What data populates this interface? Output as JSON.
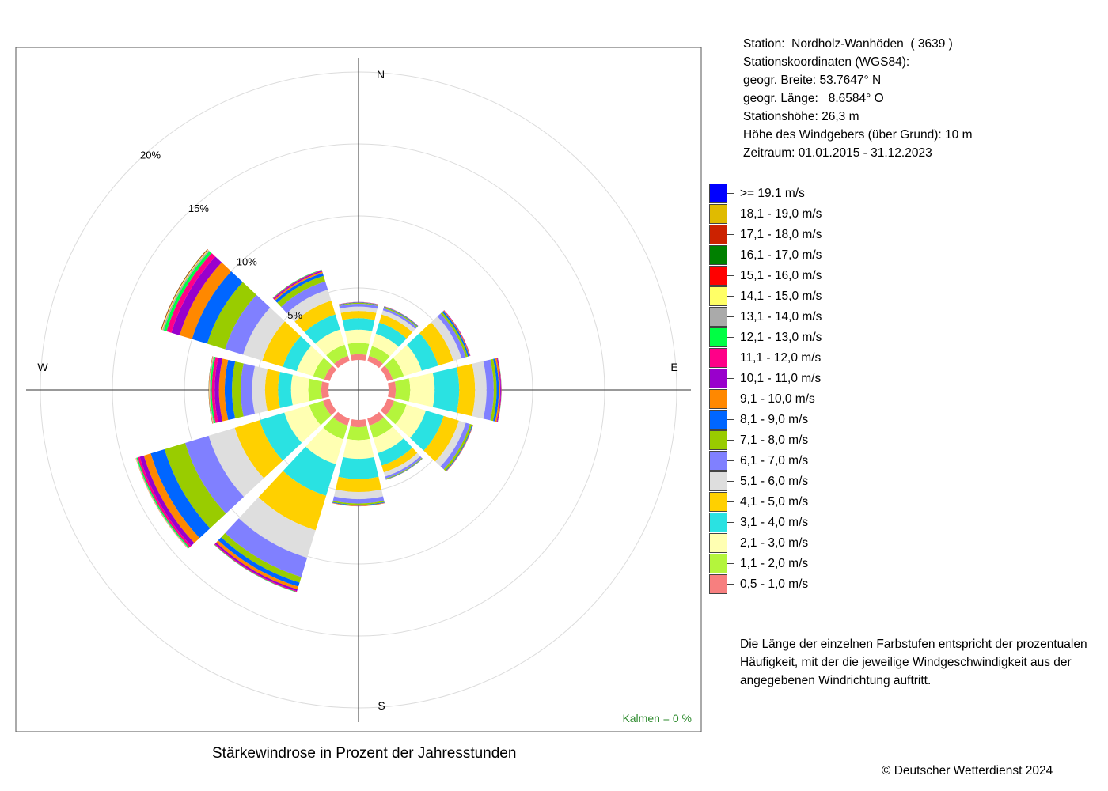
{
  "station": {
    "line1": "Station:  Nordholz-Wanhöden  ( 3639 )",
    "line2": "Stationskoordinaten (WGS84):",
    "line3": "geogr. Breite: 53.7647° N",
    "line4": "geogr. Länge:   8.6584° O",
    "line5": "Stationshöhe: 26,3 m",
    "line6": "Höhe des Windgebers (über Grund): 10 m",
    "line7": "Zeitraum: 01.01.2015 - 31.12.2023"
  },
  "note": "Die Länge der einzelnen Farbstufen entspricht der prozentualen Häufigkeit, mit der die jeweilige Windgeschwindigkeit aus der angegebenen Windrichtung auftritt.",
  "footer": {
    "title": "Stärkewindrose in Prozent der Jahresstunden",
    "copyright": "© Deutscher Wetterdienst  2024"
  },
  "chart_data": {
    "type": "windrose",
    "compass_labels": [
      "N",
      "E",
      "S",
      "W"
    ],
    "ring_labels": [
      "5%",
      "10%",
      "15%",
      "20%"
    ],
    "ring_values": [
      5,
      10,
      15,
      20
    ],
    "calm": "Kalmen  =  0 %",
    "directions_deg": [
      0,
      30,
      60,
      90,
      120,
      150,
      180,
      210,
      240,
      270,
      300,
      330
    ],
    "classes": [
      {
        "label": "0,5 - 1,0 m/s",
        "color": "#F77F7F"
      },
      {
        "label": "1,1 - 2,0 m/s",
        "color": "#B4F53C"
      },
      {
        "label": "2,1 - 3,0 m/s",
        "color": "#FFFFB2"
      },
      {
        "label": "3,1 - 4,0 m/s",
        "color": "#2AE2E2"
      },
      {
        "label": "4,1 - 5,0 m/s",
        "color": "#FFD000"
      },
      {
        "label": "5,1 - 6,0 m/s",
        "color": "#DEDEDE"
      },
      {
        "label": "6,1 - 7,0 m/s",
        "color": "#8080FF"
      },
      {
        "label": "7,1 - 8,0 m/s",
        "color": "#99CC00"
      },
      {
        "label": "8,1 - 9,0 m/s",
        "color": "#0066FF"
      },
      {
        "label": "9,1 - 10,0 m/s",
        "color": "#FF8800"
      },
      {
        "label": "10,1 - 11,0 m/s",
        "color": "#9900CC"
      },
      {
        "label": "11,1 - 12,0 m/s",
        "color": "#FF0088"
      },
      {
        "label": "12,1 - 13,0 m/s",
        "color": "#00FF44"
      },
      {
        "label": "13,1 - 14,0 m/s",
        "color": "#AAAAAA"
      },
      {
        "label": "14,1 - 15,0 m/s",
        "color": "#FFFF66"
      },
      {
        "label": "15,1 - 16,0 m/s",
        "color": "#FF0000"
      },
      {
        "label": "16,1 - 17,0 m/s",
        "color": "#008000"
      },
      {
        "label": "17,1 - 18,0 m/s",
        "color": "#CC2200"
      },
      {
        "label": "18,1 - 19,0 m/s",
        "color": "#E0BB00"
      },
      {
        "label": ">= 19.1 m/s",
        "color": "#0000FF"
      }
    ],
    "series": [
      {
        "direction": 0,
        "values": [
          0.4,
          0.8,
          0.9,
          0.8,
          0.5,
          0.3,
          0.2,
          0.06,
          0.03,
          0.02,
          0.01,
          0,
          0,
          0,
          0,
          0,
          0,
          0,
          0,
          0
        ]
      },
      {
        "direction": 30,
        "values": [
          0.4,
          0.7,
          0.9,
          0.8,
          0.6,
          0.3,
          0.15,
          0.08,
          0.04,
          0.02,
          0.01,
          0,
          0,
          0,
          0,
          0,
          0,
          0,
          0,
          0
        ]
      },
      {
        "direction": 60,
        "values": [
          0.4,
          0.8,
          1.3,
          1.2,
          1.1,
          0.6,
          0.3,
          0.15,
          0.1,
          0.05,
          0.03,
          0.01,
          0,
          0,
          0,
          0,
          0,
          0,
          0,
          0
        ]
      },
      {
        "direction": 90,
        "values": [
          0.5,
          1.0,
          1.7,
          1.7,
          1.1,
          0.8,
          0.5,
          0.2,
          0.15,
          0.1,
          0.05,
          0.03,
          0.01,
          0,
          0,
          0,
          0,
          0,
          0,
          0
        ]
      },
      {
        "direction": 120,
        "values": [
          0.5,
          0.9,
          1.4,
          1.3,
          1.1,
          0.5,
          0.3,
          0.15,
          0.05,
          0.03,
          0.01,
          0,
          0,
          0,
          0,
          0,
          0,
          0,
          0,
          0
        ]
      },
      {
        "direction": 150,
        "values": [
          0.5,
          0.9,
          1.1,
          0.9,
          0.5,
          0.3,
          0.15,
          0.05,
          0.03,
          0.01,
          0,
          0,
          0,
          0,
          0,
          0,
          0,
          0,
          0,
          0
        ]
      },
      {
        "direction": 180,
        "values": [
          0.5,
          0.9,
          1.3,
          1.4,
          0.9,
          0.5,
          0.3,
          0.1,
          0.05,
          0.03,
          0.01,
          0,
          0,
          0,
          0,
          0,
          0,
          0,
          0,
          0
        ]
      },
      {
        "direction": 210,
        "values": [
          0.5,
          1.0,
          1.8,
          2.3,
          2.5,
          2.0,
          1.4,
          0.4,
          0.3,
          0.2,
          0.12,
          0.06,
          0.03,
          0.01,
          0,
          0,
          0,
          0,
          0,
          0
        ]
      },
      {
        "direction": 240,
        "values": [
          0.5,
          1.0,
          1.8,
          1.8,
          1.8,
          1.9,
          1.7,
          1.5,
          1.0,
          0.5,
          0.3,
          0.15,
          0.08,
          0.04,
          0.02,
          0.01,
          0,
          0,
          0,
          0
        ]
      },
      {
        "direction": 270,
        "values": [
          0.5,
          0.9,
          1.2,
          0.9,
          0.9,
          0.9,
          0.8,
          0.6,
          0.5,
          0.4,
          0.3,
          0.2,
          0.1,
          0.06,
          0.03,
          0.02,
          0.01,
          0,
          0,
          0
        ]
      },
      {
        "direction": 300,
        "values": [
          0.4,
          0.8,
          1.2,
          1.0,
          1.5,
          1.4,
          1.3,
          1.3,
          1.1,
          0.9,
          0.6,
          0.35,
          0.2,
          0.1,
          0.05,
          0.03,
          0.02,
          0.01,
          0,
          0
        ]
      },
      {
        "direction": 330,
        "values": [
          0.4,
          0.8,
          1.1,
          1.1,
          1.0,
          0.8,
          0.6,
          0.4,
          0.2,
          0.1,
          0.07,
          0.05,
          0.03,
          0.01,
          0,
          0,
          0,
          0,
          0,
          0
        ]
      }
    ]
  }
}
